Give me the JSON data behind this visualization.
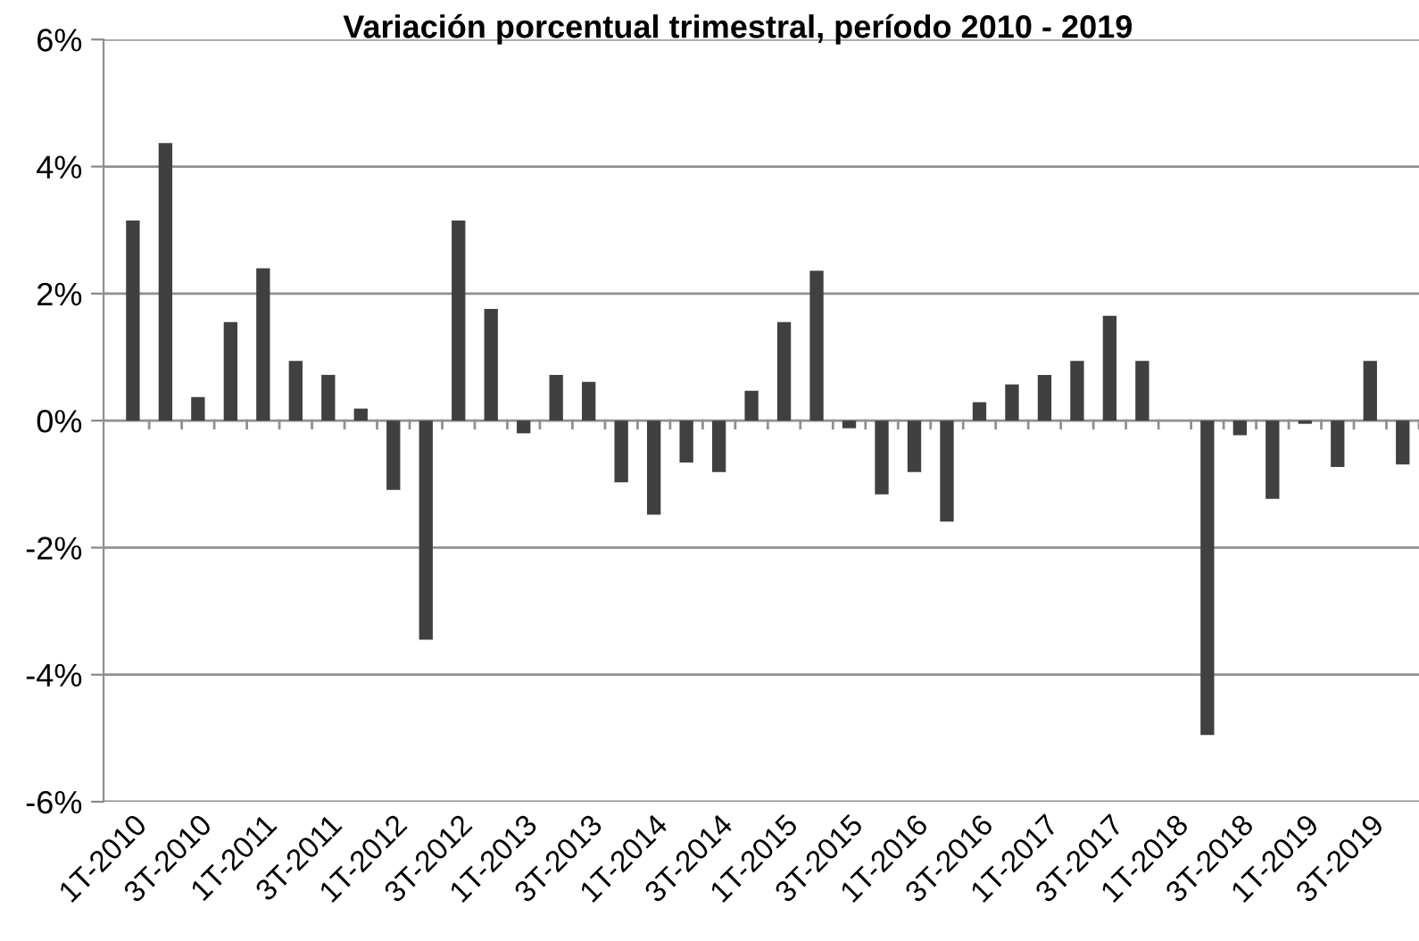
{
  "chart_data": {
    "type": "bar",
    "title": "Variación porcentual trimestral, período 2010 - 2019",
    "categories": [
      "1T-2010",
      null,
      "3T-2010",
      null,
      "1T-2011",
      null,
      "3T-2011",
      null,
      "1T-2012",
      null,
      "3T-2012",
      null,
      "1T-2013",
      null,
      "3T-2013",
      null,
      "1T-2014",
      null,
      "3T-2014",
      null,
      "1T-2015",
      null,
      "3T-2015",
      null,
      "1T-2016",
      null,
      "3T-2016",
      null,
      "1T-2017",
      null,
      "3T-2017",
      null,
      "1T-2018",
      null,
      "3T-2018",
      null,
      "1T-2019",
      null,
      "3T-2019",
      null
    ],
    "values": [
      3.15,
      4.37,
      0.37,
      1.55,
      2.4,
      0.94,
      0.72,
      0.19,
      -1.09,
      -3.45,
      3.15,
      1.76,
      -0.2,
      0.72,
      0.61,
      -0.97,
      -1.48,
      -0.66,
      -0.81,
      0.47,
      1.55,
      2.36,
      -0.12,
      -1.16,
      -0.81,
      -1.59,
      0.29,
      0.57,
      0.72,
      0.94,
      1.65,
      0.94,
      0,
      -4.95,
      -0.23,
      -1.23,
      -0.05,
      -0.73,
      0.94,
      -0.69
    ],
    "color": "#404040",
    "ylim": [
      -6,
      6
    ],
    "yticks": [
      {
        "value": -6,
        "label": "-6%"
      },
      {
        "value": -4,
        "label": "-4%"
      },
      {
        "value": -2,
        "label": "-2%"
      },
      {
        "value": 0,
        "label": "0%"
      },
      {
        "value": 2,
        "label": "2%"
      },
      {
        "value": 4,
        "label": "4%"
      },
      {
        "value": 6,
        "label": "6%"
      }
    ],
    "grid": "y"
  }
}
